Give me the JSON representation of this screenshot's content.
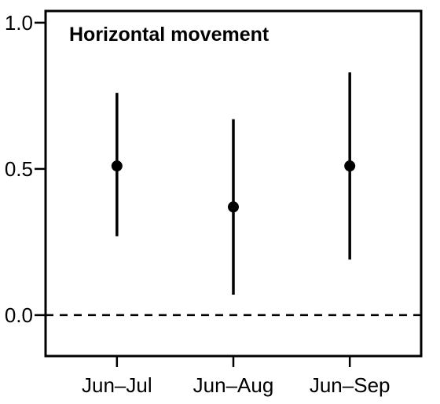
{
  "chart_data": {
    "type": "scatter",
    "title": "Horizontal movement",
    "xlabel": "",
    "ylabel": "",
    "categories": [
      "Jun–Jul",
      "Jun–Aug",
      "Jun–Sep"
    ],
    "series": [
      {
        "values": [
          0.51,
          0.37,
          0.51
        ],
        "lower": [
          0.27,
          0.07,
          0.19
        ],
        "upper": [
          0.76,
          0.67,
          0.83
        ]
      }
    ],
    "ylim": [
      -0.14,
      1.04
    ],
    "yticks": [
      0.0,
      0.5,
      1.0
    ],
    "ytick_labels": [
      "0.0",
      "0.5",
      "1.0"
    ],
    "reference_line": {
      "y": 0.0,
      "style": "dashed"
    },
    "grid": false,
    "legend": "none",
    "colors": {
      "marker": "#000000",
      "axis": "#000000",
      "background": "#ffffff"
    }
  }
}
